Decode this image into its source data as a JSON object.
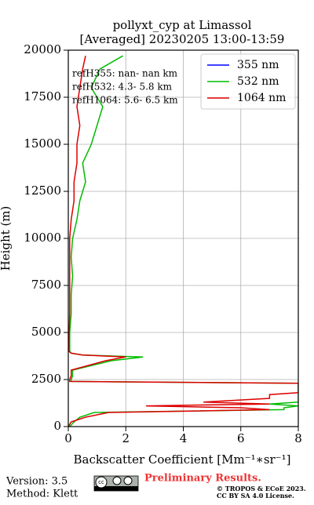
{
  "chart_data": {
    "type": "line",
    "title": "pollyxt_cyp at Limassol",
    "subtitle": "[Averaged] 20230205 13:00-13:59",
    "x_label": "Backscatter Coefficient [Mm⁻¹∗sr⁻¹]",
    "y_label": "Height (m)",
    "heights": [
      0,
      250,
      500,
      750,
      900,
      1000,
      1100,
      1200,
      1300,
      1500,
      1700,
      1800,
      2000,
      2300,
      2400,
      2500,
      2700,
      3000,
      3500,
      3700,
      3800,
      3900,
      4000,
      4500,
      5000,
      6000,
      7000,
      8000,
      9000,
      10000,
      11000,
      12000,
      13000,
      14000,
      15000,
      16000,
      17000,
      18000,
      19000,
      19700
    ],
    "series": [
      {
        "name": "355 nm",
        "color": "#0000ff",
        "values": [
          null,
          null,
          null,
          null,
          null,
          null,
          null,
          null,
          null,
          null,
          null,
          null,
          null,
          null,
          null,
          null,
          null,
          null,
          null,
          null,
          null,
          null,
          null,
          null,
          null,
          null,
          null,
          null,
          null,
          null,
          null,
          null,
          null,
          null,
          null,
          null,
          null,
          null,
          null,
          null
        ]
      },
      {
        "name": "532 nm",
        "color": "#00bb00",
        "values": [
          0.05,
          0.2,
          0.4,
          0.9,
          7.5,
          7.5,
          8,
          7,
          8,
          8,
          8,
          8,
          8,
          8,
          0.1,
          0.1,
          0.15,
          0.15,
          1.5,
          2.6,
          0.5,
          0.1,
          0.05,
          0.05,
          0.05,
          0.1,
          0.1,
          0.15,
          0.1,
          0.15,
          0.3,
          0.4,
          0.6,
          0.5,
          0.8,
          1.0,
          1.2,
          0.8,
          1.1,
          1.9
        ]
      },
      {
        "name": "1064 nm",
        "color": "#dd0000",
        "values": [
          0.0,
          0.1,
          0.6,
          1.4,
          7,
          6,
          2.7,
          7,
          4.7,
          7,
          7,
          8,
          8,
          8,
          0.05,
          0.05,
          0.1,
          0.1,
          1.3,
          2.0,
          0.5,
          0.1,
          0.02,
          0.02,
          0.03,
          0.05,
          0.05,
          0.05,
          0.05,
          0.05,
          0.1,
          0.2,
          0.2,
          0.3,
          0.3,
          0.4,
          0.3,
          0.4,
          0.5,
          0.6
        ]
      }
    ],
    "annotations": [
      "refH355:  nan- nan km",
      "refH532:  4.3- 5.8 km",
      "refH1064:  5.6- 6.5 km"
    ],
    "xlim": [
      0,
      8
    ],
    "xticks": [
      0,
      2,
      4,
      6,
      8
    ],
    "ylim": [
      0,
      20000
    ],
    "yticks": [
      0,
      2500,
      5000,
      7500,
      10000,
      12500,
      15000,
      17500,
      20000
    ],
    "grid": true,
    "legend": "upper right"
  },
  "footer": {
    "version": "Version: 3.5",
    "method": "Method: Klett",
    "notice": "Preliminary Results.",
    "copyright": "© TROPOS & ECoE 2023.",
    "license": "CC BY SA 4.0 License."
  }
}
